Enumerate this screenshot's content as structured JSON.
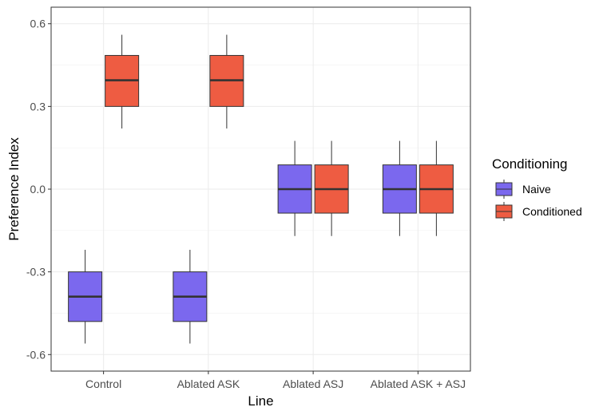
{
  "chart_data": {
    "type": "boxplot",
    "xlabel": "Line",
    "ylabel": "Preference Index",
    "categories": [
      "Control",
      "Ablated ASK",
      "Ablated ASJ",
      "Ablated ASK + ASJ"
    ],
    "yticks": [
      -0.6,
      -0.3,
      0.0,
      0.3,
      0.6
    ],
    "ytick_labels": [
      "-0.6",
      "-0.3",
      "0.0",
      "0.3",
      "0.6"
    ],
    "ylim": [
      -0.66,
      0.66
    ],
    "grid": true,
    "legend": {
      "title": "Conditioning",
      "position": "right",
      "entries": [
        "Naive",
        "Conditioned"
      ]
    },
    "series": [
      {
        "name": "Naive",
        "color": "#7B68EE",
        "boxes": [
          {
            "min": -0.56,
            "q1": -0.48,
            "median": -0.39,
            "q3": -0.3,
            "max": -0.22
          },
          {
            "min": -0.56,
            "q1": -0.48,
            "median": -0.39,
            "q3": -0.3,
            "max": -0.22
          },
          {
            "min": -0.17,
            "q1": -0.087,
            "median": 0.0,
            "q3": 0.088,
            "max": 0.175
          },
          {
            "min": -0.17,
            "q1": -0.087,
            "median": 0.0,
            "q3": 0.088,
            "max": 0.175
          }
        ]
      },
      {
        "name": "Conditioned",
        "color": "#EE5C42",
        "boxes": [
          {
            "min": 0.22,
            "q1": 0.3,
            "median": 0.395,
            "q3": 0.485,
            "max": 0.56
          },
          {
            "min": 0.22,
            "q1": 0.3,
            "median": 0.395,
            "q3": 0.485,
            "max": 0.56
          },
          {
            "min": -0.17,
            "q1": -0.087,
            "median": 0.0,
            "q3": 0.088,
            "max": 0.175
          },
          {
            "min": -0.17,
            "q1": -0.087,
            "median": 0.0,
            "q3": 0.088,
            "max": 0.175
          }
        ]
      }
    ]
  }
}
